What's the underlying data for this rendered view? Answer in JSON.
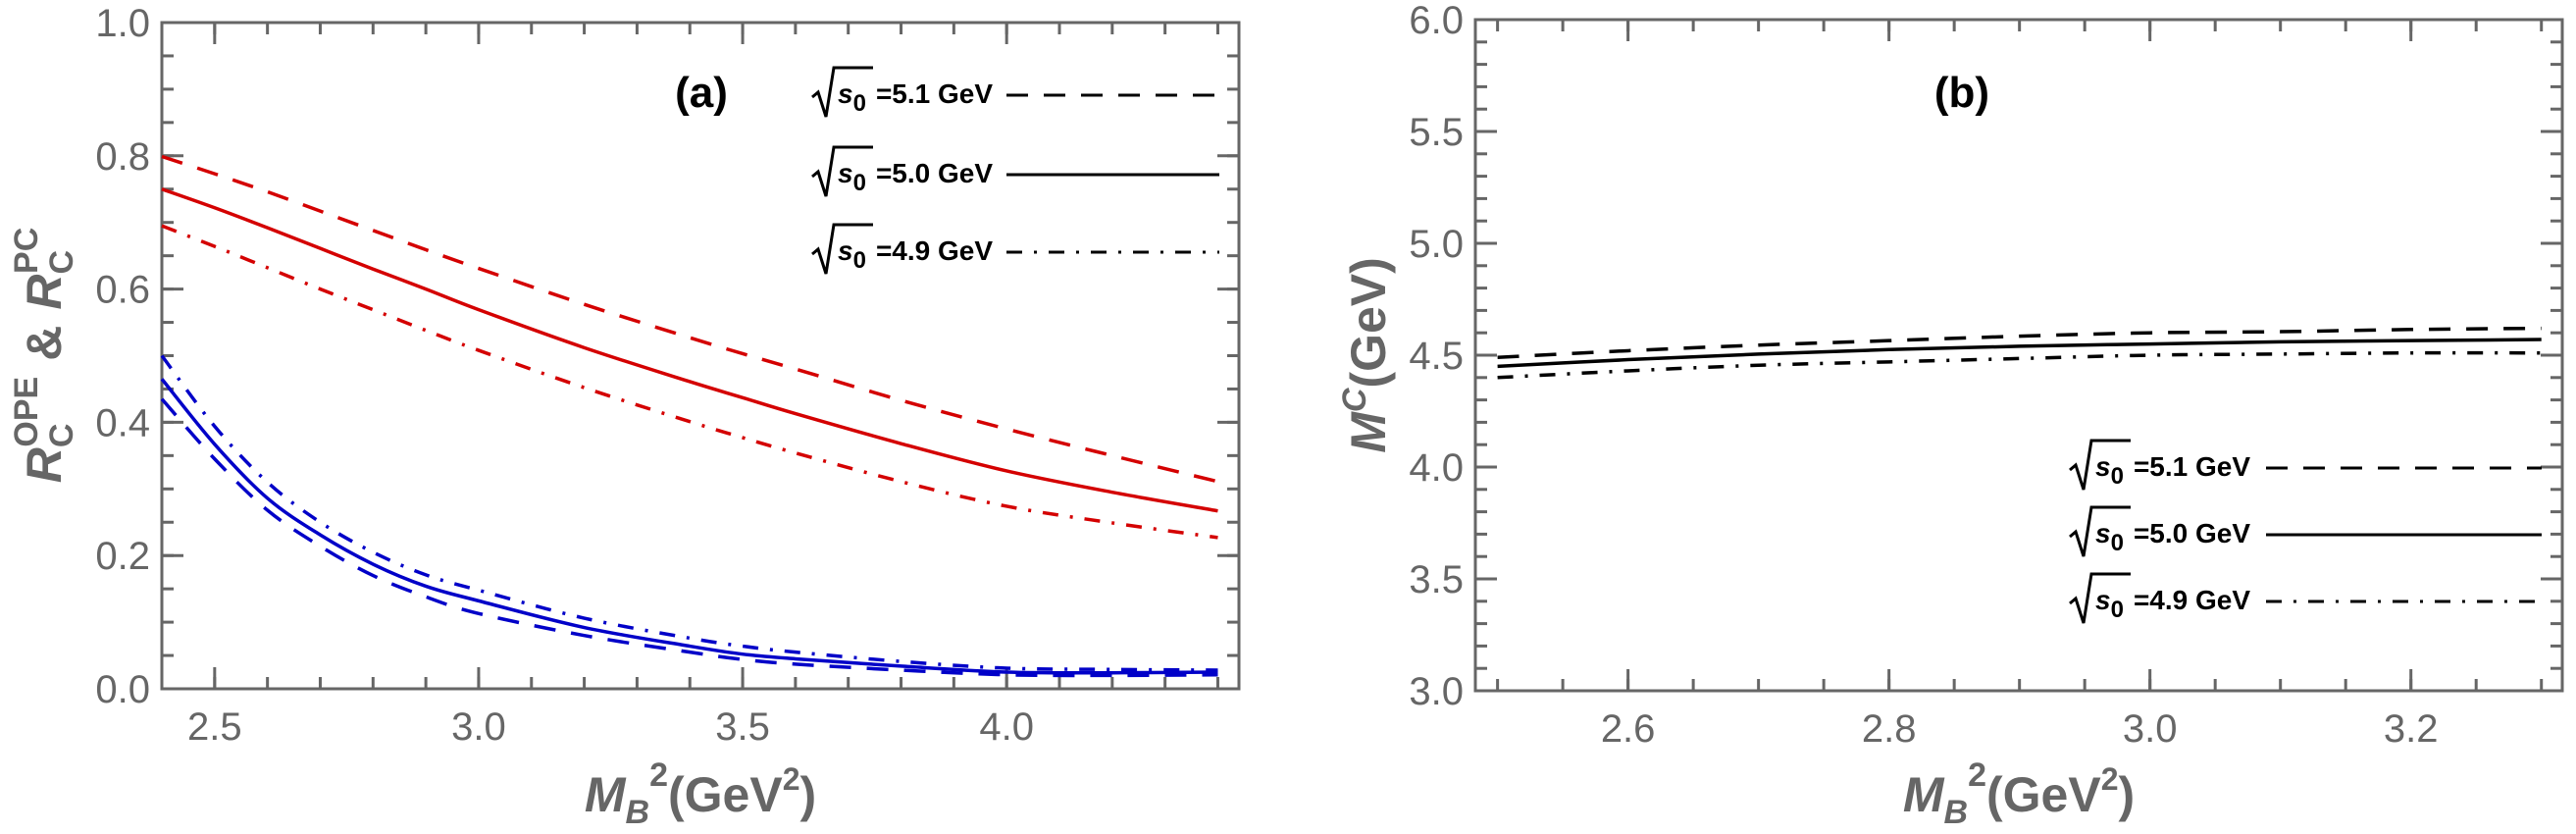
{
  "chart_data": [
    {
      "type": "line",
      "panel_label": "(a)",
      "title": "",
      "xlabel": "M_B^2(GeV^2)",
      "xlabel_parts": {
        "main": "M",
        "sub": "B",
        "sup": "2",
        "unit": "(GeV",
        "unit_sup": "2",
        "close": ")"
      },
      "ylabel": "R_C^OPE & R_C^PC",
      "ylabel_parts": {
        "r1": "R",
        "r1_sub": "C",
        "r1_sup": "OPE",
        "amp": "&",
        "r2": "R",
        "r2_sub": "C",
        "r2_sup": "PC"
      },
      "xlim": [
        2.4,
        4.44
      ],
      "ylim": [
        0.0,
        1.0
      ],
      "xticks": [
        2.5,
        3.0,
        3.5,
        4.0
      ],
      "xtick_labels": [
        "2.5",
        "3.0",
        "3.5",
        "4.0"
      ],
      "xminor_step": 0.1,
      "yticks": [
        0.0,
        0.2,
        0.4,
        0.6,
        0.8,
        1.0
      ],
      "ytick_labels": [
        "0.0",
        "0.2",
        "0.4",
        "0.6",
        "0.8",
        "1.0"
      ],
      "yminor_step": 0.05,
      "grid": false,
      "legend_position": "top-right",
      "legend": [
        {
          "sqrt": "s",
          "sub": "0",
          "text": "=5.1 GeV",
          "style": "dashed"
        },
        {
          "sqrt": "s",
          "sub": "0",
          "text": "=5.0 GeV",
          "style": "solid"
        },
        {
          "sqrt": "s",
          "sub": "0",
          "text": "=4.9 GeV",
          "style": "dashdot"
        }
      ],
      "x": [
        2.4,
        2.5,
        2.6,
        2.7,
        2.8,
        2.9,
        3.0,
        3.2,
        3.4,
        3.5,
        3.6,
        3.8,
        4.0,
        4.2,
        4.4
      ],
      "series": [
        {
          "name": "R_C^PC sqrt(s0)=5.1 GeV",
          "group": "PC",
          "color": "#d40000",
          "style": "dashed",
          "values": [
            0.799,
            0.773,
            0.746,
            0.717,
            0.688,
            0.659,
            0.631,
            0.577,
            0.527,
            0.503,
            0.48,
            0.433,
            0.39,
            0.35,
            0.311
          ]
        },
        {
          "name": "R_C^PC sqrt(s0)=5.0 GeV",
          "group": "PC",
          "color": "#d40000",
          "style": "solid",
          "values": [
            0.75,
            0.722,
            0.692,
            0.661,
            0.63,
            0.6,
            0.569,
            0.512,
            0.461,
            0.437,
            0.413,
            0.368,
            0.327,
            0.295,
            0.267
          ]
        },
        {
          "name": "R_C^PC sqrt(s0)=4.9 GeV",
          "group": "PC",
          "color": "#d40000",
          "style": "dashdot",
          "values": [
            0.695,
            0.664,
            0.632,
            0.6,
            0.569,
            0.538,
            0.508,
            0.452,
            0.401,
            0.377,
            0.354,
            0.311,
            0.274,
            0.249,
            0.227
          ]
        },
        {
          "name": "R_C^OPE sqrt(s0)=5.1 GeV",
          "group": "OPE",
          "color": "#0000c8",
          "style": "dashed",
          "values": [
            0.435,
            0.345,
            0.268,
            0.214,
            0.17,
            0.138,
            0.113,
            0.08,
            0.055,
            0.044,
            0.037,
            0.028,
            0.021,
            0.02,
            0.021
          ]
        },
        {
          "name": "R_C^OPE sqrt(s0)=5.0 GeV",
          "group": "OPE",
          "color": "#0000c8",
          "style": "solid",
          "values": [
            0.465,
            0.367,
            0.286,
            0.231,
            0.187,
            0.154,
            0.132,
            0.092,
            0.064,
            0.052,
            0.045,
            0.034,
            0.025,
            0.024,
            0.025
          ]
        },
        {
          "name": "R_C^OPE sqrt(s0)=4.9 GeV",
          "group": "OPE",
          "color": "#0000c8",
          "style": "dashdot",
          "values": [
            0.5,
            0.394,
            0.31,
            0.25,
            0.205,
            0.171,
            0.148,
            0.106,
            0.076,
            0.064,
            0.055,
            0.041,
            0.031,
            0.029,
            0.028
          ]
        }
      ]
    },
    {
      "type": "line",
      "panel_label": "(b)",
      "title": "",
      "xlabel": "M_B^2(GeV^2)",
      "xlabel_parts": {
        "main": "M",
        "sub": "B",
        "sup": "2",
        "unit": "(GeV",
        "unit_sup": "2",
        "close": ")"
      },
      "ylabel": "M^C(GeV)",
      "ylabel_parts": {
        "main": "M",
        "sup": "C",
        "unit": "(GeV)"
      },
      "xlim": [
        2.483,
        3.316
      ],
      "ylim": [
        3.0,
        6.0
      ],
      "xticks": [
        2.6,
        2.8,
        3.0,
        3.2
      ],
      "xtick_labels": [
        "2.6",
        "2.8",
        "3.0",
        "3.2"
      ],
      "xminor_step": 0.05,
      "yticks": [
        3.0,
        3.5,
        4.0,
        4.5,
        5.0,
        5.5,
        6.0
      ],
      "ytick_labels": [
        "3.0",
        "3.5",
        "4.0",
        "4.5",
        "5.0",
        "5.5",
        "6.0"
      ],
      "yminor_step": 0.1,
      "grid": false,
      "legend_position": "bottom-right",
      "legend": [
        {
          "sqrt": "s",
          "sub": "0",
          "text": "=5.1 GeV",
          "style": "dashed"
        },
        {
          "sqrt": "s",
          "sub": "0",
          "text": "=5.0 GeV",
          "style": "solid"
        },
        {
          "sqrt": "s",
          "sub": "0",
          "text": "=4.9 GeV",
          "style": "dashdot"
        }
      ],
      "x": [
        2.5,
        2.6,
        2.7,
        2.8,
        2.9,
        3.0,
        3.1,
        3.2,
        3.3
      ],
      "series": [
        {
          "name": "M^C sqrt(s0)=5.1 GeV",
          "color": "#000000",
          "style": "dashed",
          "values": [
            4.49,
            4.52,
            4.545,
            4.565,
            4.585,
            4.6,
            4.605,
            4.615,
            4.62
          ]
        },
        {
          "name": "M^C sqrt(s0)=5.0 GeV",
          "color": "#000000",
          "style": "solid",
          "values": [
            4.45,
            4.48,
            4.505,
            4.525,
            4.54,
            4.55,
            4.56,
            4.565,
            4.57
          ]
        },
        {
          "name": "M^C sqrt(s0)=4.9 GeV",
          "color": "#000000",
          "style": "dashdot",
          "values": [
            4.4,
            4.43,
            4.455,
            4.47,
            4.485,
            4.5,
            4.505,
            4.51,
            4.51
          ]
        }
      ]
    }
  ]
}
